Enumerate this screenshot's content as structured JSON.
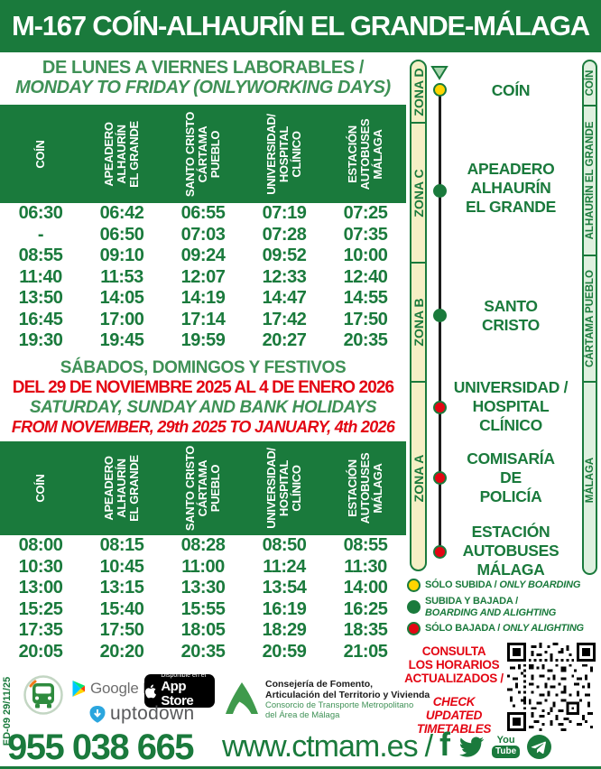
{
  "title": "M-167 COÍN-ALHAURÍN EL GRANDE-MÁLAGA",
  "columns": [
    [
      "COÍN"
    ],
    [
      "APEADERO",
      "ALHAURÍN",
      "EL GRANDE"
    ],
    [
      "SANTO CRISTO",
      "CÁRTAMA",
      "PUEBLO"
    ],
    [
      "UNIVERSIDAD/",
      "HOSPITAL",
      "CLÍNICO"
    ],
    [
      "ESTACIÓN",
      "AUTOBUSES",
      "MÁLAGA"
    ]
  ],
  "weekday": {
    "heading_es": "DE LUNES A VIERNES LABORABLES /",
    "heading_en": "MONDAY TO FRIDAY (ONLYWORKING DAYS)",
    "rows": [
      [
        "06:30",
        "06:42",
        "06:55",
        "07:19",
        "07:25"
      ],
      [
        "-",
        "06:50",
        "07:03",
        "07:28",
        "07:35"
      ],
      [
        "08:55",
        "09:10",
        "09:24",
        "09:52",
        "10:00"
      ],
      [
        "11:40",
        "11:53",
        "12:07",
        "12:33",
        "12:40"
      ],
      [
        "13:50",
        "14:05",
        "14:19",
        "14:47",
        "14:55"
      ],
      [
        "16:45",
        "17:00",
        "17:14",
        "17:42",
        "17:50"
      ],
      [
        "19:30",
        "19:45",
        "19:59",
        "20:27",
        "20:35"
      ]
    ]
  },
  "weekend": {
    "heading_es": "SÁBADOS, DOMINGOS Y FESTIVOS",
    "dates_es": "DEL 29 DE NOVIEMBRE 2025 AL 4 DE ENERO 2026",
    "heading_en": "SATURDAY, SUNDAY AND BANK HOLIDAYS",
    "dates_en": "FROM NOVEMBER, 29th 2025 TO JANUARY, 4th 2026",
    "rows": [
      [
        "08:00",
        "08:15",
        "08:28",
        "08:50",
        "08:55"
      ],
      [
        "10:30",
        "10:45",
        "11:00",
        "11:24",
        "11:30"
      ],
      [
        "13:00",
        "13:15",
        "13:30",
        "13:54",
        "14:00"
      ],
      [
        "15:25",
        "15:40",
        "15:55",
        "16:19",
        "16:25"
      ],
      [
        "17:35",
        "17:50",
        "18:05",
        "18:29",
        "18:35"
      ],
      [
        "20:05",
        "20:20",
        "20:35",
        "20:59",
        "21:05"
      ]
    ]
  },
  "route": {
    "zones": [
      "ZONA D",
      "ZONA C",
      "ZONA B",
      "ZONA A"
    ],
    "stops": [
      {
        "lines": [
          "COÍN"
        ],
        "marker": "solo-subida"
      },
      {
        "lines": [
          "APEADERO",
          "ALHAURÍN",
          "EL GRANDE"
        ],
        "marker": "subida-y-bajada"
      },
      {
        "lines": [
          "SANTO",
          "CRISTO"
        ],
        "marker": "subida-y-bajada"
      },
      {
        "lines": [
          "UNIVERSIDAD /",
          "HOSPITAL",
          "CLÍNICO"
        ],
        "marker": "solo-bajada"
      },
      {
        "lines": [
          "COMISARÍA",
          "DE",
          "POLICÍA"
        ],
        "marker": "solo-bajada"
      },
      {
        "lines": [
          "ESTACIÓN",
          "AUTOBUSES",
          "MÁLAGA"
        ],
        "marker": "solo-bajada"
      }
    ],
    "areas": [
      "COÍN",
      "ALHAURÍN EL GRANDE",
      "CÁRTAMA PUEBLO",
      "MÁLAGA"
    ]
  },
  "legend": [
    {
      "es": "SÓLO SUBIDA /",
      "en": "ONLY BOARDING"
    },
    {
      "es": "SUBIDA Y BAJADA /",
      "en": "BOARDING AND ALIGHTING"
    },
    {
      "es": "SÓLO BAJADA /",
      "en": "ONLY ALIGHTING"
    }
  ],
  "notice": {
    "es_lines": [
      "CONSULTA",
      "LOS HORARIOS",
      "ACTUALIZADOS /"
    ],
    "en_lines": [
      "CHECK",
      "UPDATED",
      "TIMETABLES"
    ]
  },
  "badges": {
    "google_play": "Google Play",
    "app_store_top": "Disponible en el",
    "app_store_bottom": "App Store",
    "uptodown": "uptodown"
  },
  "agency": {
    "bold1": "Consejería de Fomento,",
    "bold2": "Articulación del Territorio y Vivienda",
    "green1": "Consorcio de Transporte Metropolitano",
    "green2": "del Área de Málaga"
  },
  "edition": "ED-09 29/11/25",
  "footer": {
    "phone": "955 038 665",
    "website": "www.ctmam.es",
    "separator": "/",
    "facebook_glyph": "f",
    "youtube_top": "You",
    "youtube_bottom": "Tube"
  },
  "colors": {
    "brand_green": "#1a7a3c",
    "heading_green": "#3f9156",
    "red": "#e30613",
    "yellow": "#ffd500",
    "zone_fill": "#f5efc5",
    "area_fill": "#dff0df"
  }
}
